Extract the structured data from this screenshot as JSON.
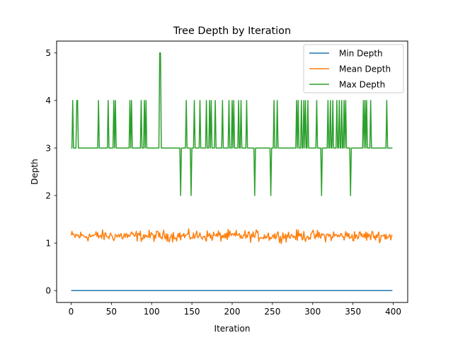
{
  "chart_data": {
    "type": "line",
    "title": "Tree Depth by Iteration",
    "xlabel": "Iteration",
    "ylabel": "Depth",
    "xlim": [
      -18,
      418
    ],
    "ylim": [
      -0.25,
      5.25
    ],
    "xticks": [
      0,
      50,
      100,
      150,
      200,
      250,
      300,
      350,
      400
    ],
    "yticks": [
      0,
      1,
      2,
      3,
      4,
      5
    ],
    "grid": false,
    "legend_position": "top-right",
    "series": [
      {
        "name": "Min Depth",
        "color": "#1f77b4",
        "style": "constant",
        "x_range": [
          0,
          399
        ],
        "value": 0
      },
      {
        "name": "Mean Depth",
        "color": "#ff7f0e",
        "style": "noisy",
        "x_range": [
          0,
          399
        ],
        "mean": 1.15,
        "range": [
          0.97,
          1.3
        ]
      },
      {
        "name": "Max Depth",
        "color": "#2ca02c",
        "style": "step-spikes",
        "x_range": [
          0,
          399
        ],
        "base": 3,
        "spikes_to_4": [
          2,
          7,
          8,
          34,
          46,
          53,
          55,
          73,
          75,
          87,
          91,
          93,
          143,
          153,
          160,
          168,
          172,
          174,
          179,
          188,
          196,
          200,
          202,
          208,
          211,
          218,
          252,
          256,
          280,
          282,
          286,
          289,
          291,
          294,
          305,
          311,
          319,
          322,
          325,
          330,
          333,
          336,
          339,
          341,
          363,
          365,
          367,
          372,
          392
        ],
        "spikes_to_5": [
          110,
          111
        ],
        "dips_to_2": [
          136,
          149,
          228,
          248,
          311,
          347
        ]
      }
    ]
  }
}
